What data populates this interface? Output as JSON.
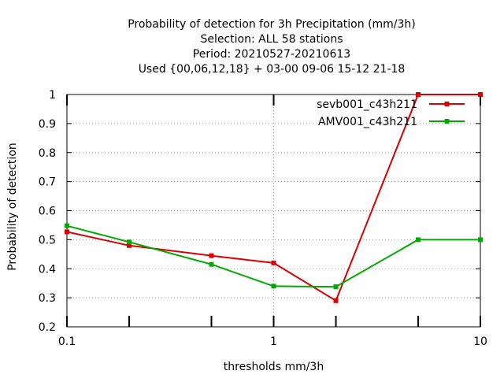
{
  "chart_data": {
    "type": "line",
    "title_lines": [
      "Probability of detection  for 3h Precipitation (mm/3h)",
      "Selection: ALL      58 stations",
      "Period: 20210527-20210613",
      "Used {00,06,12,18} + 03-00 09-06 15-12 21-18"
    ],
    "xlabel": "thresholds mm/3h",
    "ylabel": "Probability of detection",
    "xscale": "log",
    "xlim": [
      0.1,
      10
    ],
    "ylim": [
      0.2,
      1.0
    ],
    "x_ticks": [
      0.1,
      1,
      10
    ],
    "x_tick_labels": [
      "0.1",
      "1",
      "10"
    ],
    "x_minor_ticks": [
      0.2,
      0.5,
      2,
      5
    ],
    "y_ticks": [
      0.2,
      0.3,
      0.4,
      0.5,
      0.6,
      0.7,
      0.8,
      0.9,
      1.0
    ],
    "y_tick_labels": [
      "0.2",
      "0.3",
      "0.4",
      "0.5",
      "0.6",
      "0.7",
      "0.8",
      "0.9",
      "1"
    ],
    "grid": true,
    "legend_position": "top-right",
    "x": [
      0.1,
      0.2,
      0.5,
      1,
      2,
      5,
      10
    ],
    "series": [
      {
        "name": "sevb001_c43h211",
        "color": "#dd0000",
        "values": [
          0.527,
          0.48,
          0.445,
          0.42,
          0.29,
          1.0,
          1.0
        ]
      },
      {
        "name": "AMV001_c43h211",
        "color": "#00aa00",
        "values": [
          0.548,
          0.492,
          0.415,
          0.34,
          0.338,
          0.5,
          0.5
        ]
      }
    ]
  }
}
